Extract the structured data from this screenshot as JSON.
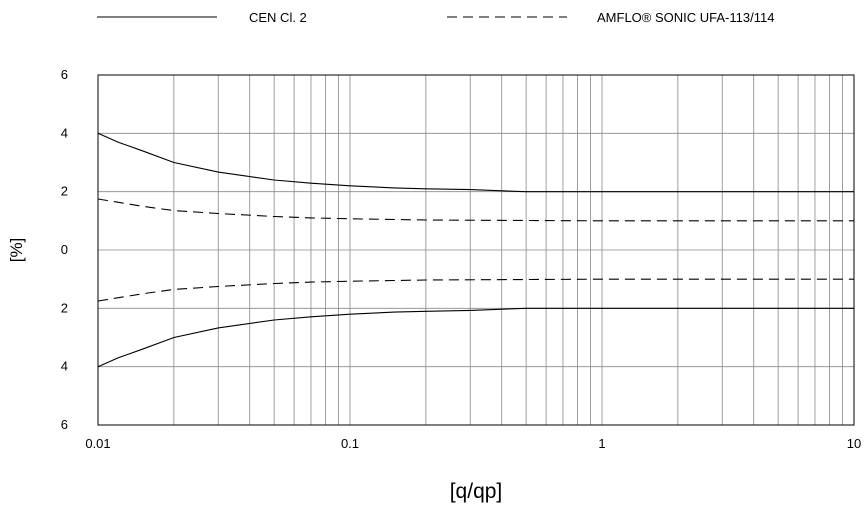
{
  "chart_data": {
    "type": "line",
    "xscale": "log",
    "xlim": [
      0.01,
      10
    ],
    "ylim": [
      -6,
      6
    ],
    "xlabel": "[q/qp]",
    "ylabel": "[%]",
    "xticks": [
      "0.01",
      "0.1",
      "1",
      "10"
    ],
    "yticks": [
      "6",
      "4",
      "2",
      "0",
      "2",
      "4",
      "6"
    ],
    "ytick_values": [
      6,
      4,
      2,
      0,
      -2,
      -4,
      -6
    ],
    "grid": true,
    "legend_position": "top",
    "series": [
      {
        "name": "CEN Cl. 2",
        "style": "solid",
        "x": [
          0.01,
          0.012,
          0.015,
          0.02,
          0.03,
          0.05,
          0.07,
          0.1,
          0.15,
          0.2,
          0.3,
          0.5,
          1,
          10
        ],
        "y": [
          4.0,
          3.7,
          3.4,
          3.0,
          2.67,
          2.4,
          2.29,
          2.2,
          2.13,
          2.1,
          2.07,
          2.0,
          2.0,
          2.0
        ]
      },
      {
        "name": "CEN Cl. 2",
        "style": "solid",
        "x": [
          0.01,
          0.012,
          0.015,
          0.02,
          0.03,
          0.05,
          0.07,
          0.1,
          0.15,
          0.2,
          0.3,
          0.5,
          1,
          10
        ],
        "y": [
          -4.0,
          -3.7,
          -3.4,
          -3.0,
          -2.67,
          -2.4,
          -2.29,
          -2.2,
          -2.13,
          -2.1,
          -2.07,
          -2.0,
          -2.0,
          -2.0
        ]
      },
      {
        "name": "AMFLO® SONIC UFA-113/114",
        "style": "dashed",
        "x": [
          0.01,
          0.015,
          0.02,
          0.03,
          0.05,
          0.07,
          0.1,
          0.2,
          0.5,
          1,
          10
        ],
        "y": [
          1.75,
          1.5,
          1.35,
          1.25,
          1.15,
          1.1,
          1.07,
          1.03,
          1.01,
          1.0,
          1.0
        ]
      },
      {
        "name": "AMFLO® SONIC UFA-113/114",
        "style": "dashed",
        "x": [
          0.01,
          0.015,
          0.02,
          0.03,
          0.05,
          0.07,
          0.1,
          0.2,
          0.5,
          1,
          10
        ],
        "y": [
          -1.75,
          -1.5,
          -1.35,
          -1.25,
          -1.15,
          -1.1,
          -1.07,
          -1.03,
          -1.01,
          -1.0,
          -1.0
        ]
      }
    ],
    "legend": [
      {
        "label": "CEN Cl. 2",
        "style": "solid"
      },
      {
        "label": "AMFLO® SONIC UFA-113/114",
        "style": "dashed"
      }
    ],
    "colors": {
      "line": "#000000",
      "grid": "#888888",
      "axis": "#000000"
    }
  }
}
